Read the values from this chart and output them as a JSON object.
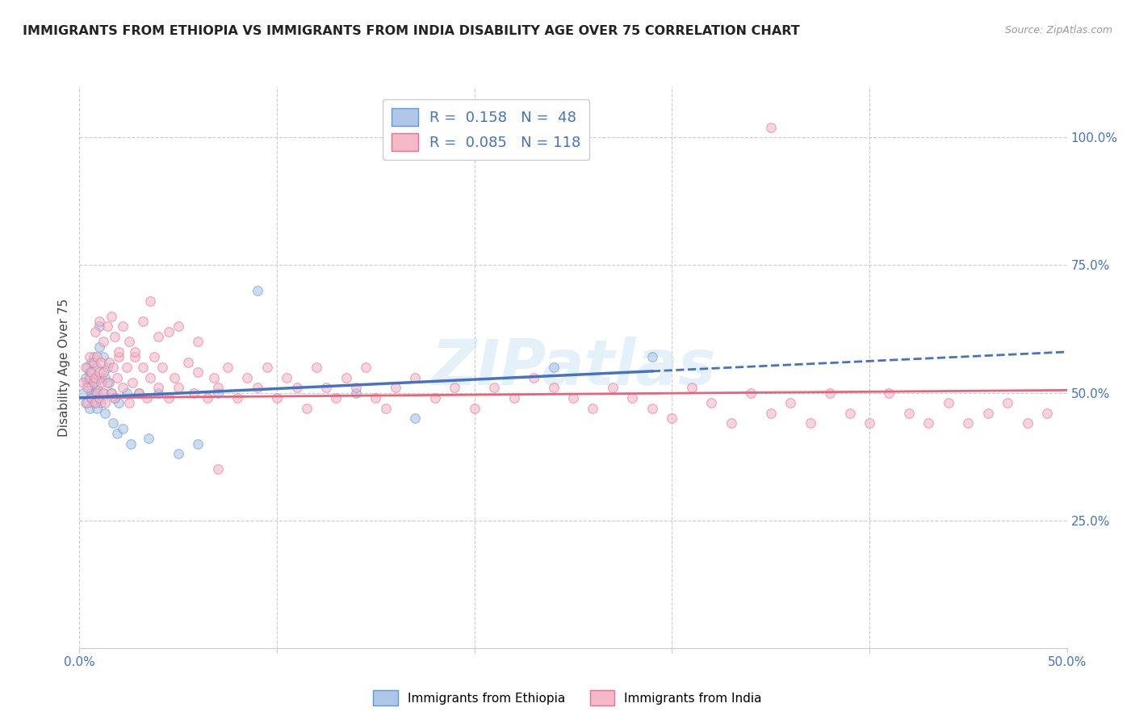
{
  "title": "IMMIGRANTS FROM ETHIOPIA VS IMMIGRANTS FROM INDIA DISABILITY AGE OVER 75 CORRELATION CHART",
  "source": "Source: ZipAtlas.com",
  "ylabel": "Disability Age Over 75",
  "xlabel": "",
  "xlim": [
    0.0,
    0.5
  ],
  "ylim": [
    0.0,
    1.1
  ],
  "xtick_labels": [
    "0.0%",
    "",
    "",
    "",
    "",
    "50.0%"
  ],
  "xtick_vals": [
    0.0,
    0.1,
    0.2,
    0.3,
    0.4,
    0.5
  ],
  "ytick_labels": [
    "25.0%",
    "50.0%",
    "75.0%",
    "100.0%"
  ],
  "ytick_vals": [
    0.25,
    0.5,
    0.75,
    1.0
  ],
  "ethiopia_R": 0.158,
  "ethiopia_N": 48,
  "india_R": 0.085,
  "india_N": 118,
  "eth_x": [
    0.002,
    0.003,
    0.003,
    0.004,
    0.004,
    0.005,
    0.005,
    0.005,
    0.006,
    0.006,
    0.006,
    0.007,
    0.007,
    0.007,
    0.008,
    0.008,
    0.009,
    0.009,
    0.009,
    0.01,
    0.01,
    0.011,
    0.011,
    0.012,
    0.012,
    0.013,
    0.013,
    0.014,
    0.015,
    0.016,
    0.017,
    0.018,
    0.019,
    0.02,
    0.022,
    0.024,
    0.026,
    0.03,
    0.035,
    0.04,
    0.05,
    0.06,
    0.07,
    0.09,
    0.14,
    0.17,
    0.24,
    0.29
  ],
  "eth_y": [
    0.5,
    0.53,
    0.48,
    0.52,
    0.55,
    0.51,
    0.47,
    0.54,
    0.56,
    0.5,
    0.49,
    0.53,
    0.57,
    0.48,
    0.52,
    0.5,
    0.55,
    0.47,
    0.51,
    0.59,
    0.63,
    0.53,
    0.48,
    0.57,
    0.5,
    0.53,
    0.46,
    0.55,
    0.52,
    0.5,
    0.44,
    0.49,
    0.42,
    0.48,
    0.43,
    0.5,
    0.4,
    0.5,
    0.41,
    0.5,
    0.38,
    0.4,
    0.5,
    0.7,
    0.5,
    0.45,
    0.55,
    0.57
  ],
  "india_x": [
    0.002,
    0.003,
    0.004,
    0.004,
    0.005,
    0.005,
    0.006,
    0.006,
    0.007,
    0.007,
    0.008,
    0.008,
    0.009,
    0.009,
    0.01,
    0.01,
    0.011,
    0.011,
    0.012,
    0.012,
    0.013,
    0.014,
    0.015,
    0.016,
    0.017,
    0.018,
    0.019,
    0.02,
    0.022,
    0.024,
    0.025,
    0.027,
    0.028,
    0.03,
    0.032,
    0.034,
    0.036,
    0.038,
    0.04,
    0.042,
    0.045,
    0.048,
    0.05,
    0.055,
    0.058,
    0.06,
    0.065,
    0.068,
    0.07,
    0.075,
    0.08,
    0.085,
    0.09,
    0.095,
    0.1,
    0.105,
    0.11,
    0.115,
    0.12,
    0.125,
    0.13,
    0.135,
    0.14,
    0.145,
    0.15,
    0.155,
    0.16,
    0.17,
    0.18,
    0.19,
    0.2,
    0.21,
    0.22,
    0.23,
    0.24,
    0.25,
    0.26,
    0.27,
    0.28,
    0.29,
    0.3,
    0.31,
    0.32,
    0.33,
    0.34,
    0.35,
    0.36,
    0.37,
    0.38,
    0.39,
    0.4,
    0.41,
    0.42,
    0.43,
    0.44,
    0.45,
    0.46,
    0.47,
    0.48,
    0.49,
    0.008,
    0.01,
    0.012,
    0.014,
    0.016,
    0.018,
    0.02,
    0.022,
    0.025,
    0.028,
    0.032,
    0.036,
    0.04,
    0.045,
    0.05,
    0.06,
    0.07,
    0.35
  ],
  "india_y": [
    0.52,
    0.55,
    0.48,
    0.51,
    0.53,
    0.57,
    0.49,
    0.54,
    0.52,
    0.56,
    0.48,
    0.53,
    0.57,
    0.5,
    0.54,
    0.49,
    0.52,
    0.56,
    0.5,
    0.54,
    0.48,
    0.52,
    0.56,
    0.5,
    0.55,
    0.49,
    0.53,
    0.57,
    0.51,
    0.55,
    0.48,
    0.52,
    0.57,
    0.5,
    0.55,
    0.49,
    0.53,
    0.57,
    0.51,
    0.55,
    0.49,
    0.53,
    0.51,
    0.56,
    0.5,
    0.54,
    0.49,
    0.53,
    0.51,
    0.55,
    0.49,
    0.53,
    0.51,
    0.55,
    0.49,
    0.53,
    0.51,
    0.47,
    0.55,
    0.51,
    0.49,
    0.53,
    0.51,
    0.55,
    0.49,
    0.47,
    0.51,
    0.53,
    0.49,
    0.51,
    0.47,
    0.51,
    0.49,
    0.53,
    0.51,
    0.49,
    0.47,
    0.51,
    0.49,
    0.47,
    0.45,
    0.51,
    0.48,
    0.44,
    0.5,
    0.46,
    0.48,
    0.44,
    0.5,
    0.46,
    0.44,
    0.5,
    0.46,
    0.44,
    0.48,
    0.44,
    0.46,
    0.48,
    0.44,
    0.46,
    0.62,
    0.64,
    0.6,
    0.63,
    0.65,
    0.61,
    0.58,
    0.63,
    0.6,
    0.58,
    0.64,
    0.68,
    0.61,
    0.62,
    0.63,
    0.6,
    0.35,
    1.02
  ],
  "scatter_alpha": 0.6,
  "scatter_size": 70,
  "eth_scatter_color": "#aec6e8",
  "eth_scatter_edge": "#5b9bd5",
  "india_scatter_color": "#f4b8c8",
  "india_scatter_edge": "#e87090",
  "eth_trend_color": "#4472c4",
  "eth_trend_dash": false,
  "india_trend_color": "#e8647a",
  "grid_color": "#cccccc",
  "grid_style": "--",
  "background_color": "#ffffff",
  "title_color": "#222222",
  "axis_color": "#4472c4",
  "watermark": "ZIPatlas"
}
